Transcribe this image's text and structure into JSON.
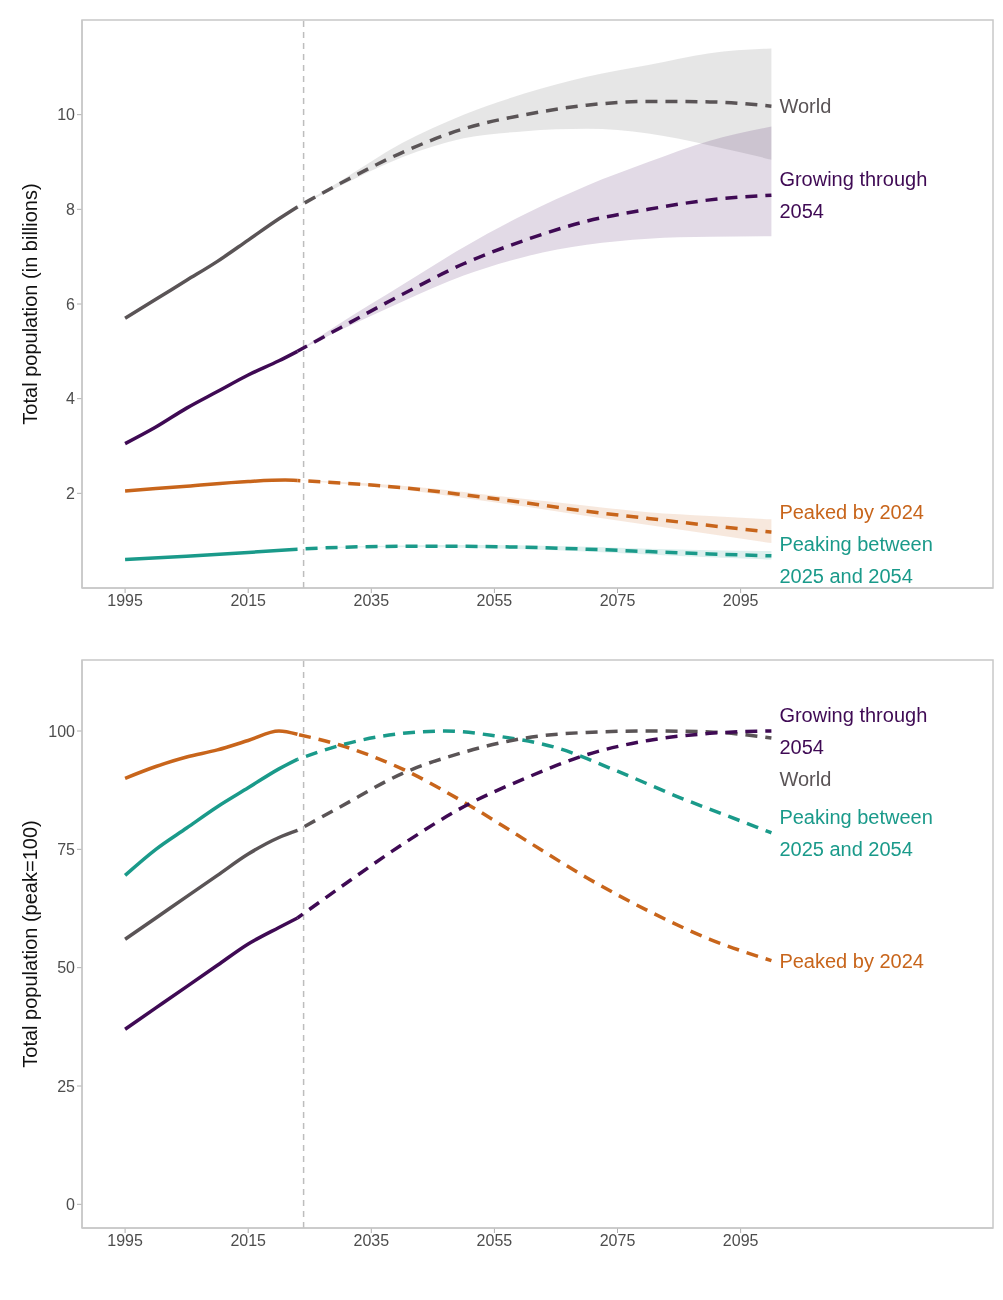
{
  "chart_data": [
    {
      "type": "line",
      "ylabel": "Total population (in billions)",
      "xlim": [
        1988,
        2136
      ],
      "xticks": [
        1995,
        2015,
        2035,
        2055,
        2075,
        2095
      ],
      "ylim": [
        0,
        12
      ],
      "yticks": [
        2,
        4,
        6,
        8,
        10
      ],
      "ref_lines": [
        {
          "axis": "x",
          "value": 2024,
          "color": "#bdbdbd",
          "line_style": "dashed"
        }
      ],
      "series": [
        {
          "color": "#5a5456",
          "line_style": "solid",
          "x": [
            1995,
            2000,
            2005,
            2010,
            2015,
            2020,
            2023
          ],
          "values": [
            5.7,
            6.1,
            6.5,
            6.9,
            7.35,
            7.8,
            8.05
          ]
        },
        {
          "name": "World",
          "color": "#5a5456",
          "line_style": "dashed",
          "x": [
            2023,
            2030,
            2040,
            2050,
            2060,
            2070,
            2080,
            2090,
            2100
          ],
          "values": [
            8.05,
            8.55,
            9.2,
            9.7,
            10.0,
            10.2,
            10.28,
            10.27,
            10.18
          ],
          "lower": [
            8.05,
            8.5,
            9.1,
            9.5,
            9.65,
            9.7,
            9.6,
            9.35,
            9.05
          ],
          "upper": [
            8.05,
            8.6,
            9.4,
            10.0,
            10.45,
            10.8,
            11.05,
            11.3,
            11.4
          ]
        },
        {
          "color": "#3f0a54",
          "line_style": "solid",
          "x": [
            1995,
            2000,
            2005,
            2010,
            2015,
            2020,
            2023
          ],
          "values": [
            3.05,
            3.4,
            3.8,
            4.15,
            4.5,
            4.8,
            5.0
          ]
        },
        {
          "name": "Growing through 2054",
          "color": "#3f0a54",
          "line_style": "dashed",
          "x": [
            2023,
            2030,
            2040,
            2050,
            2060,
            2070,
            2080,
            2090,
            2100
          ],
          "values": [
            5.0,
            5.5,
            6.2,
            6.85,
            7.35,
            7.75,
            8.0,
            8.2,
            8.3
          ],
          "lower": [
            5.0,
            5.45,
            6.05,
            6.6,
            7.0,
            7.25,
            7.38,
            7.42,
            7.43
          ],
          "upper": [
            5.0,
            5.6,
            6.4,
            7.2,
            7.9,
            8.5,
            9.0,
            9.45,
            9.75
          ]
        },
        {
          "color": "#c8651b",
          "line_style": "solid",
          "x": [
            1995,
            2005,
            2015,
            2021,
            2023
          ],
          "values": [
            2.05,
            2.15,
            2.25,
            2.28,
            2.27
          ]
        },
        {
          "name": "Peaked by 2024",
          "color": "#c8651b",
          "line_style": "dashed",
          "x": [
            2023,
            2030,
            2040,
            2050,
            2060,
            2070,
            2080,
            2090,
            2100
          ],
          "values": [
            2.27,
            2.22,
            2.12,
            1.97,
            1.8,
            1.62,
            1.47,
            1.32,
            1.18
          ],
          "lower": [
            2.27,
            2.2,
            2.08,
            1.9,
            1.72,
            1.52,
            1.33,
            1.14,
            0.95
          ],
          "upper": [
            2.27,
            2.24,
            2.16,
            2.03,
            1.88,
            1.74,
            1.6,
            1.52,
            1.45
          ]
        },
        {
          "color": "#1a9a8a",
          "line_style": "solid",
          "x": [
            1995,
            2005,
            2015,
            2023
          ],
          "values": [
            0.6,
            0.67,
            0.75,
            0.82
          ]
        },
        {
          "name": "Peaking between 2025 and 2054",
          "color": "#1a9a8a",
          "line_style": "dashed",
          "x": [
            2023,
            2030,
            2040,
            2050,
            2060,
            2070,
            2080,
            2090,
            2100
          ],
          "values": [
            0.82,
            0.86,
            0.88,
            0.88,
            0.86,
            0.82,
            0.77,
            0.72,
            0.68
          ],
          "lower": [
            0.82,
            0.85,
            0.86,
            0.85,
            0.82,
            0.77,
            0.71,
            0.65,
            0.6
          ],
          "upper": [
            0.82,
            0.87,
            0.9,
            0.91,
            0.9,
            0.87,
            0.83,
            0.8,
            0.78
          ]
        }
      ]
    },
    {
      "type": "line",
      "ylabel": "Total population (peak=100)",
      "xlim": [
        1988,
        2136
      ],
      "xticks": [
        1995,
        2015,
        2035,
        2055,
        2075,
        2095
      ],
      "ylim": [
        -5,
        115
      ],
      "yticks": [
        0,
        25,
        50,
        75,
        100
      ],
      "ref_lines": [
        {
          "axis": "x",
          "value": 2024,
          "color": "#bdbdbd",
          "line_style": "dashed"
        }
      ],
      "series": [
        {
          "color": "#c8651b",
          "line_style": "solid",
          "x": [
            1995,
            2000,
            2005,
            2010,
            2015,
            2020,
            2023
          ],
          "values": [
            90,
            92.5,
            94.5,
            96,
            98,
            100,
            99.3
          ]
        },
        {
          "name": "Peaked by 2024",
          "color": "#c8651b",
          "line_style": "dashed",
          "x": [
            2023,
            2030,
            2040,
            2050,
            2060,
            2070,
            2080,
            2090,
            2100
          ],
          "values": [
            99.3,
            97,
            92,
            85,
            77,
            69,
            62,
            56,
            51.5
          ]
        },
        {
          "color": "#1a9a8a",
          "line_style": "solid",
          "x": [
            1995,
            2000,
            2005,
            2010,
            2015,
            2020,
            2023
          ],
          "values": [
            69.5,
            75,
            79.5,
            84,
            88,
            92,
            94
          ]
        },
        {
          "name": "Peaking between 2025 and 2054",
          "color": "#1a9a8a",
          "line_style": "dashed",
          "x": [
            2023,
            2030,
            2040,
            2047,
            2055,
            2065,
            2075,
            2085,
            2095,
            2100
          ],
          "values": [
            94,
            97,
            99.5,
            100,
            99,
            96.5,
            91.5,
            86,
            81,
            78.5
          ]
        },
        {
          "color": "#5a5456",
          "line_style": "solid",
          "x": [
            1995,
            2000,
            2005,
            2010,
            2015,
            2020,
            2023
          ],
          "values": [
            56,
            60.5,
            65,
            69.5,
            74,
            77.5,
            79
          ]
        },
        {
          "name": "World",
          "color": "#5a5456",
          "line_style": "dashed",
          "x": [
            2023,
            2030,
            2040,
            2050,
            2060,
            2070,
            2080,
            2090,
            2100
          ],
          "values": [
            79,
            84,
            91,
            95.5,
            98.5,
            99.7,
            100,
            99.8,
            98.5
          ]
        },
        {
          "color": "#3f0a54",
          "line_style": "solid",
          "x": [
            1995,
            2000,
            2005,
            2010,
            2015,
            2020,
            2023
          ],
          "values": [
            37,
            41.5,
            46,
            50.5,
            55,
            58.5,
            60.5
          ]
        },
        {
          "name": "Growing through 2054",
          "color": "#3f0a54",
          "line_style": "dashed",
          "x": [
            2023,
            2030,
            2040,
            2050,
            2060,
            2070,
            2080,
            2090,
            2100
          ],
          "values": [
            60.5,
            67,
            76,
            84,
            90,
            95,
            98,
            99.5,
            100
          ]
        }
      ]
    }
  ]
}
